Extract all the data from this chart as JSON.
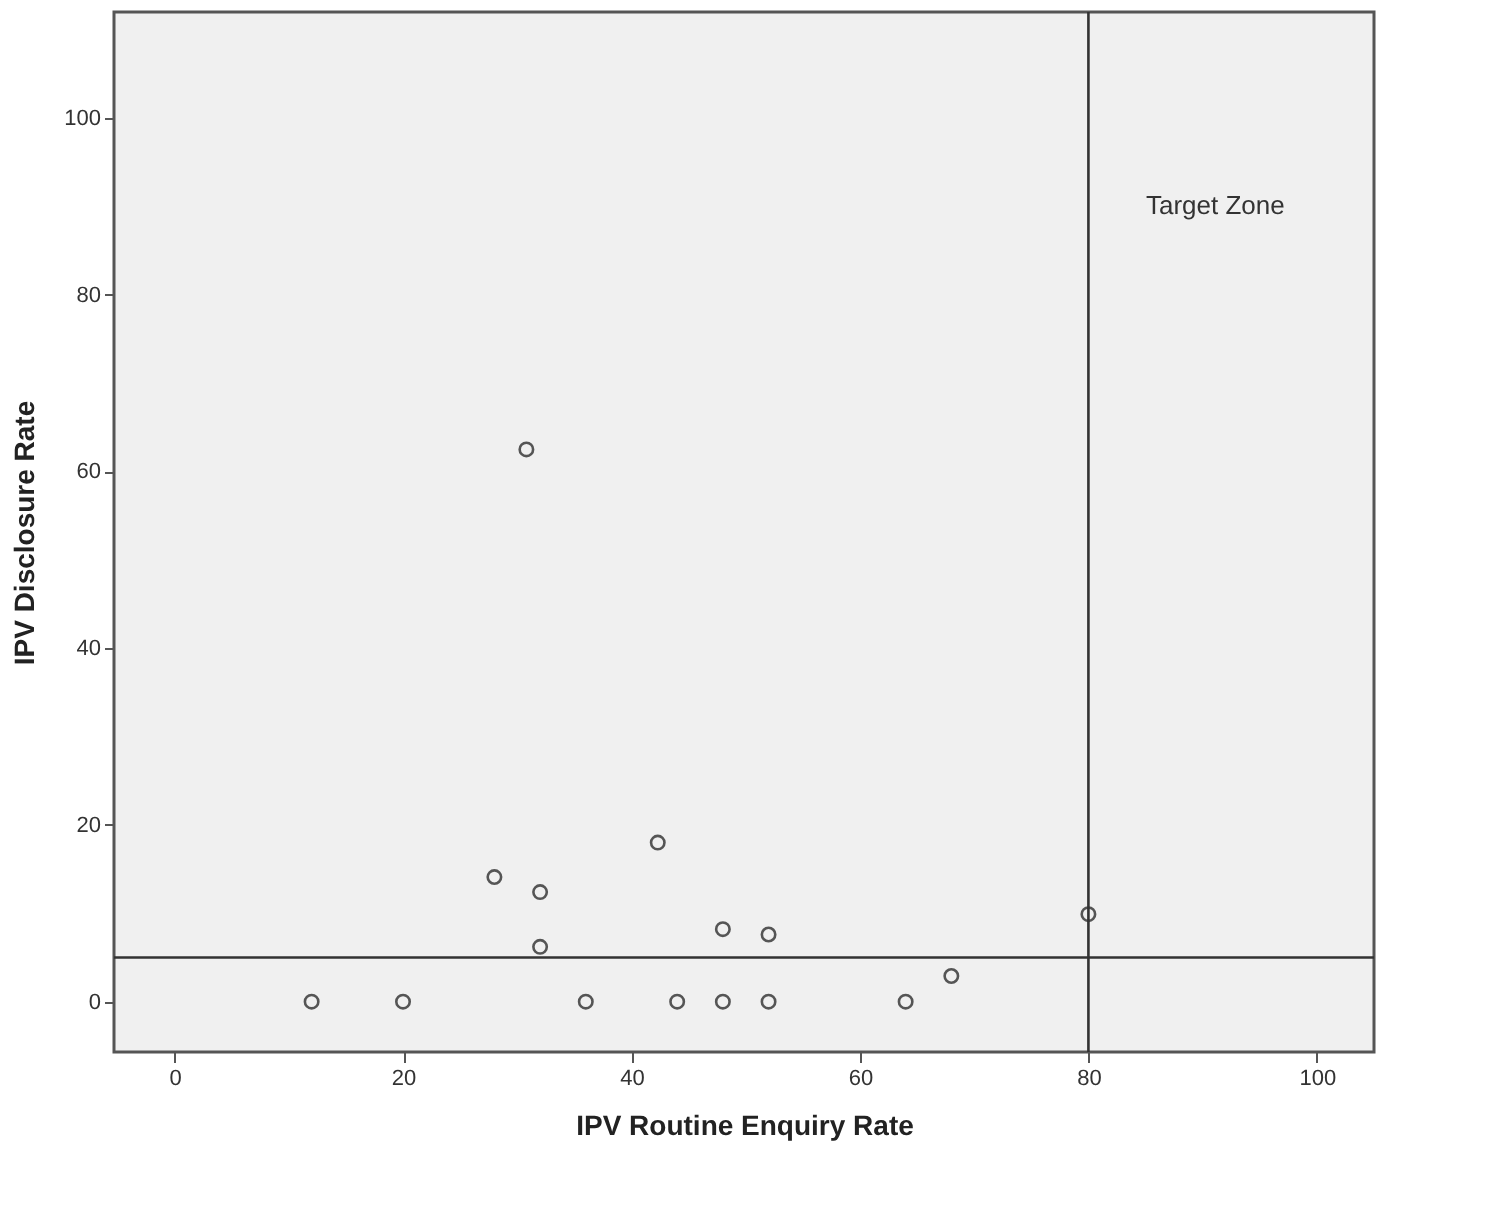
{
  "chart_data": {
    "type": "scatter",
    "xlabel": "IPV Routine Enquiry Rate",
    "ylabel": "IPV Disclosure Rate",
    "x": [
      12,
      20,
      28,
      32,
      32,
      36,
      42.3,
      44,
      48,
      48,
      52,
      52,
      64,
      68,
      80,
      30.8
    ],
    "values": [
      0,
      0,
      14.1,
      12.4,
      6.2,
      0,
      18,
      0,
      8.2,
      0,
      7.6,
      0,
      0,
      2.9,
      9.9,
      62.5
    ],
    "color": "#555555",
    "marker": "circle",
    "xlim": [
      -5.3,
      105
    ],
    "xticks": [
      0,
      20,
      40,
      60,
      80,
      100
    ],
    "ylim": [
      -5.7,
      112
    ],
    "yticks": [
      0,
      20,
      40,
      60,
      80,
      100
    ],
    "ref_lines": [
      {
        "axis": "x",
        "value": 80,
        "color": "#333333"
      },
      {
        "axis": "y",
        "value": 5,
        "color": "#333333"
      }
    ],
    "annotations": [
      "Target Zone"
    ]
  }
}
